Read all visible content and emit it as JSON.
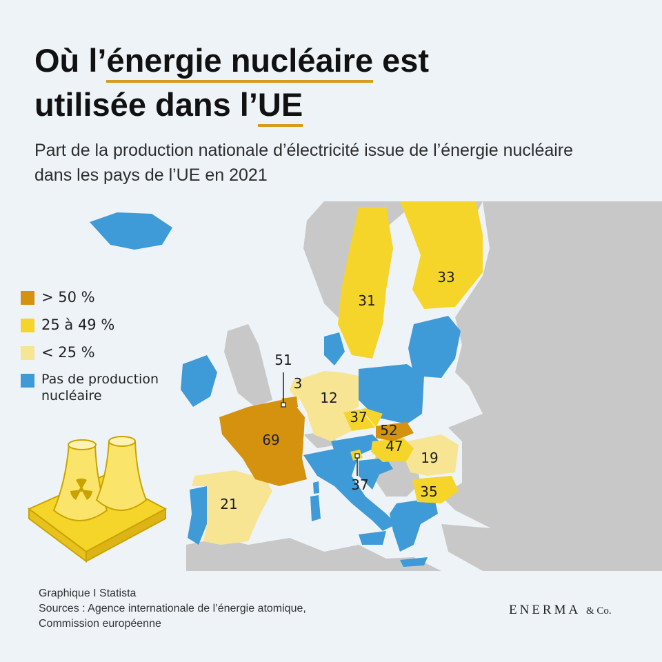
{
  "title": {
    "line1_prefix": "Où l’",
    "line1_highlight": "énergie nucléaire",
    "line1_suffix": " est",
    "line2_prefix": "utilisée dans l’",
    "line2_highlight": "UE"
  },
  "subtitle": "Part de la production nationale d’électricité issue de l’énergie nucléaire dans les pays de l’UE en 2021",
  "colors": {
    "over_50": "#d4920f",
    "between_25_49": "#f5d52a",
    "under_25": "#f7e594",
    "no_production": "#3f9ad8",
    "non_eu": "#c8c8c8",
    "sea": "#eef3f7"
  },
  "legend": [
    {
      "label": "> 50 %",
      "color": "#d4920f"
    },
    {
      "label": "25 à 49 %",
      "color": "#f5d52a"
    },
    {
      "label": "< 25 %",
      "color": "#f7e594"
    },
    {
      "label": "Pas de production\nnucléaire",
      "color": "#3f9ad8"
    }
  ],
  "countries": [
    {
      "id": "finlande",
      "value": "33"
    },
    {
      "id": "suede",
      "value": "31"
    },
    {
      "id": "belgique",
      "value": "51"
    },
    {
      "id": "pays-bas",
      "value": "3"
    },
    {
      "id": "allemagne",
      "value": "12"
    },
    {
      "id": "tchequie",
      "value": "37"
    },
    {
      "id": "slovaquie",
      "value": "52"
    },
    {
      "id": "hongrie",
      "value": "47"
    },
    {
      "id": "roumanie",
      "value": "19"
    },
    {
      "id": "france",
      "value": "69"
    },
    {
      "id": "slovenie",
      "value": "37"
    },
    {
      "id": "bulgarie",
      "value": "35"
    },
    {
      "id": "espagne",
      "value": "21"
    }
  ],
  "footer": {
    "line1": "Graphique I Statista",
    "line2": "Sources : Agence internationale de l’énergie atomique,",
    "line3": "Commission européenne"
  },
  "brand": {
    "name": "ENERMA",
    "suffix": "& Co."
  },
  "icons": {
    "illustration": "nuclear-plant-icon"
  }
}
